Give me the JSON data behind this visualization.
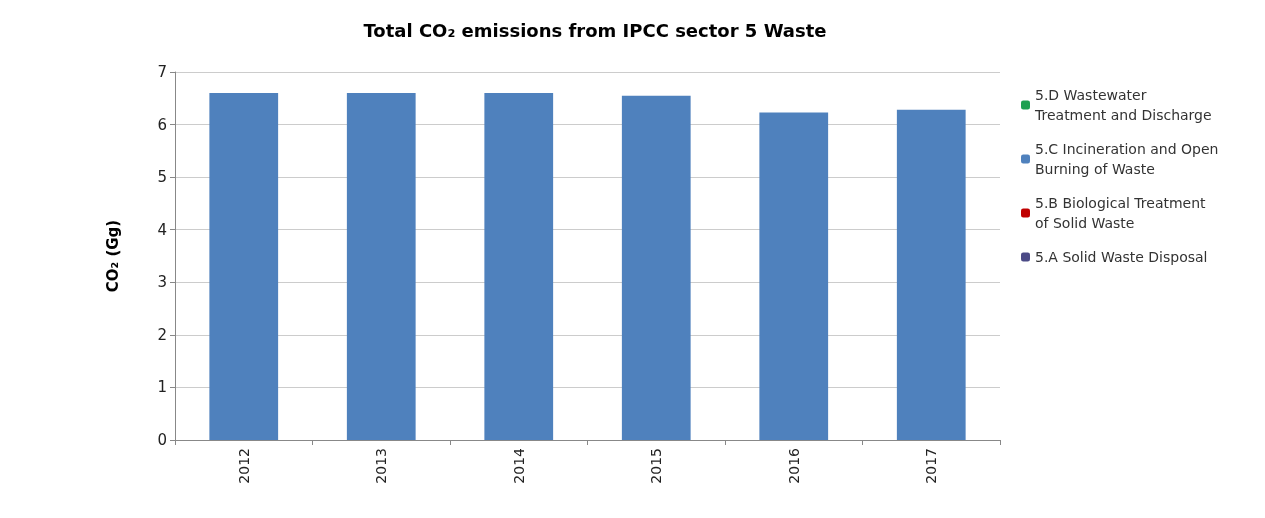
{
  "chart_data": {
    "type": "bar",
    "title": "Total CO₂ emissions from IPCC sector 5 Waste",
    "ylabel": "CO₂ (Gg)",
    "categories": [
      "2012",
      "2013",
      "2014",
      "2015",
      "2016",
      "2017"
    ],
    "series": [
      {
        "name": "5.A Solid Waste Disposal",
        "color": "#4b4a86",
        "values": [
          0,
          0,
          0,
          0,
          0,
          0
        ]
      },
      {
        "name": "5.B Biological Treatment of Solid Waste",
        "color": "#c00000",
        "values": [
          0,
          0,
          0,
          0,
          0,
          0
        ]
      },
      {
        "name": "5.C Incineration and Open Burning of Waste",
        "color": "#4f81bd",
        "values": [
          6.6,
          6.6,
          6.6,
          6.55,
          6.23,
          6.28
        ]
      },
      {
        "name": "5.D Wastewater Treatment and Discharge",
        "color": "#1ea050",
        "values": [
          0,
          0,
          0,
          0,
          0,
          0
        ]
      }
    ],
    "stacked": true,
    "ylim": [
      0,
      7
    ],
    "yticks": [
      0,
      1,
      2,
      3,
      4,
      5,
      6,
      7
    ],
    "grid": "y",
    "legend": "right"
  }
}
